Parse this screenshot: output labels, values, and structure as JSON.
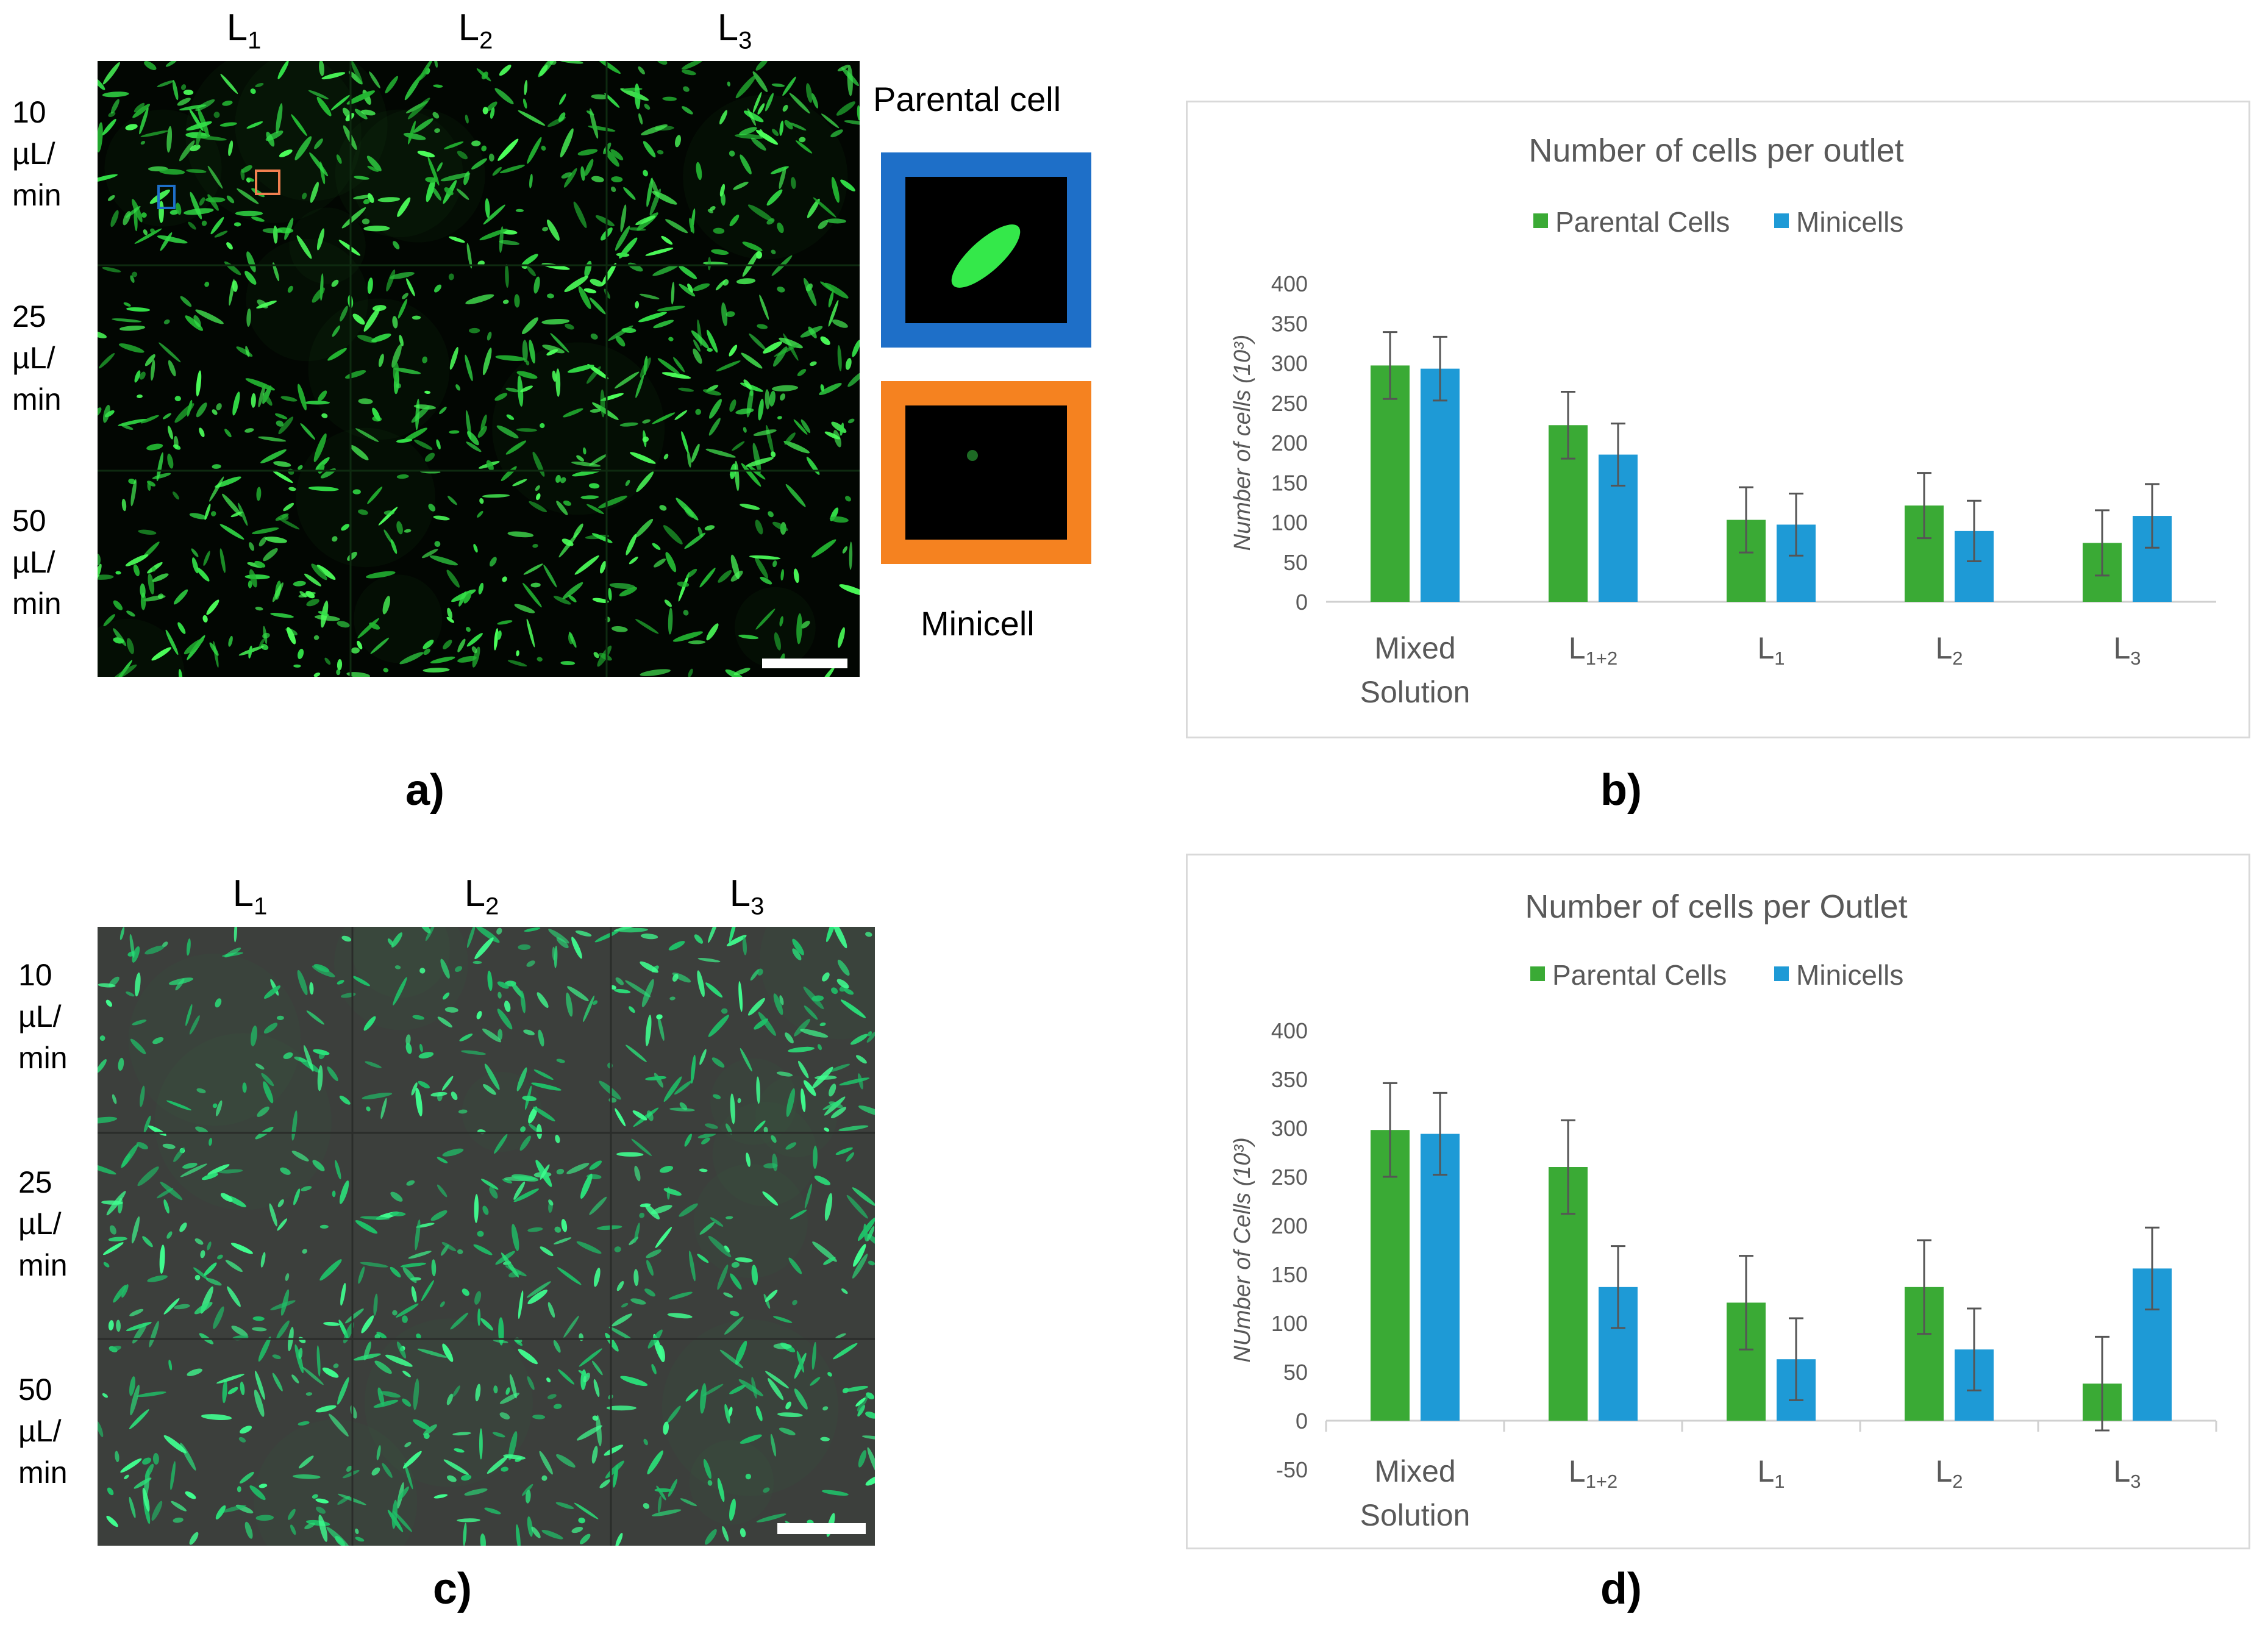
{
  "panel_a": {
    "columns": [
      "L1",
      "L2",
      "L3"
    ],
    "rows": [
      "10\nµL/\nmin",
      "25\nµL/\nmin",
      "50\nµL/\nmin"
    ],
    "letter": "a)",
    "inset_top_label": "Parental cell",
    "inset_bottom_label": "Minicell",
    "colors": {
      "inset_top_frame": "#1e6fc8",
      "inset_bottom_frame": "#f58220",
      "fluor": "#3cff4a"
    }
  },
  "panel_c": {
    "columns": [
      "L1",
      "L2",
      "L3"
    ],
    "rows": [
      "10\nµL/\nmin",
      "25\nµL/\nmin",
      "50\nµL/\nmin"
    ],
    "letter": "c)"
  },
  "letters": {
    "b": "b)",
    "d": "d)"
  },
  "chart_data": [
    {
      "type": "bar",
      "title": "Number of cells per outlet",
      "ylabel": "Number of cells (10³)",
      "categories": [
        "Mixed\nSolution",
        "L1+2",
        "L1",
        "L2",
        "L3"
      ],
      "series": [
        {
          "name": "Parental Cells",
          "color": "#3aaa35",
          "values": [
            297,
            222,
            103,
            121,
            74
          ],
          "errors": [
            42,
            42,
            41,
            41,
            41
          ]
        },
        {
          "name": "Minicells",
          "color": "#1e9ad6",
          "values": [
            293,
            185,
            97,
            89,
            108
          ],
          "errors": [
            40,
            39,
            39,
            38,
            40
          ]
        }
      ],
      "ylim": [
        0,
        400
      ],
      "yticks": [
        0,
        50,
        100,
        150,
        200,
        250,
        300,
        350,
        400
      ],
      "legend": "top"
    },
    {
      "type": "bar",
      "title": "Number of cells per Outlet",
      "ylabel": "NUmber of Cells (10³)",
      "categories": [
        "Mixed\nSolution",
        "L1+2",
        "L1",
        "L2",
        "L3"
      ],
      "series": [
        {
          "name": "Parental Cells",
          "color": "#3aaa35",
          "values": [
            298,
            260,
            121,
            137,
            38
          ],
          "errors": [
            48,
            48,
            48,
            48,
            48
          ]
        },
        {
          "name": "Minicells",
          "color": "#1e9ad6",
          "values": [
            294,
            137,
            63,
            73,
            156
          ],
          "errors": [
            42,
            42,
            42,
            42,
            42
          ]
        }
      ],
      "ylim": [
        -50,
        400
      ],
      "yticks": [
        -50,
        0,
        50,
        100,
        150,
        200,
        250,
        300,
        350,
        400
      ],
      "legend": "top"
    }
  ]
}
